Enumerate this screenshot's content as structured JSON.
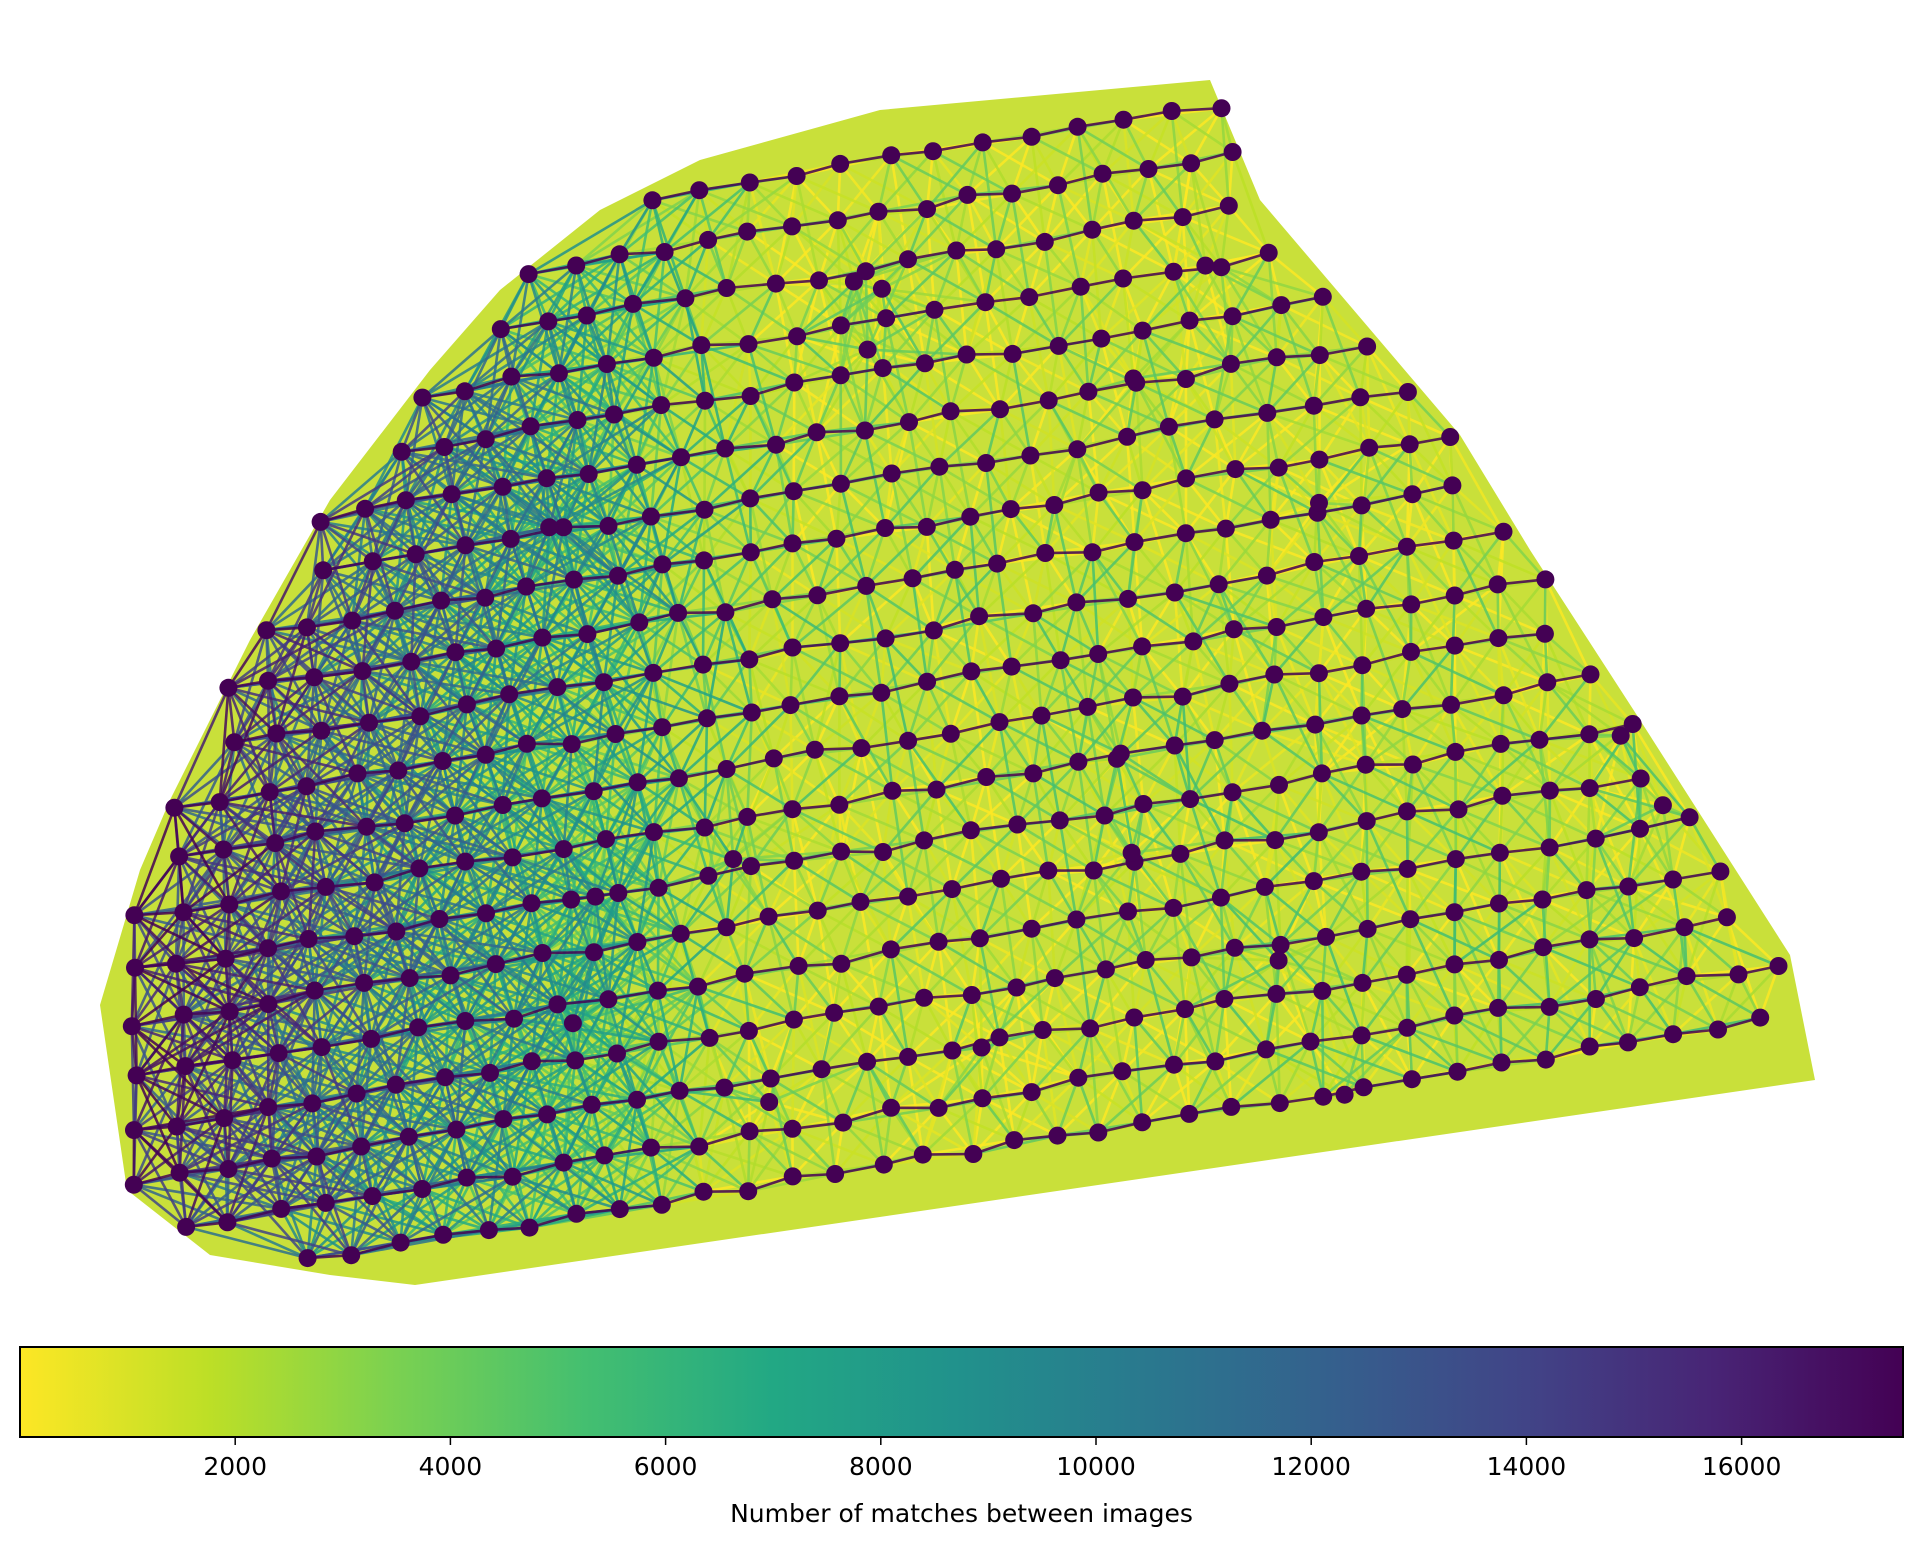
{
  "chart_data": {
    "type": "scatter",
    "description_kind": "network-graph",
    "colormap": "viridis",
    "colors": {
      "low": "#fde725",
      "mid": "#21918c",
      "high": "#440154",
      "node": "#440154"
    },
    "colorbar": {
      "label": "Number of matches between images",
      "range": [
        0,
        17500
      ],
      "ticks": [
        2000,
        4000,
        6000,
        8000,
        10000,
        12000,
        14000,
        16000
      ],
      "tick_labels": [
        "2000",
        "4000",
        "6000",
        "8000",
        "10000",
        "12000",
        "14000",
        "16000"
      ],
      "orientation": "horizontal"
    },
    "grid": false,
    "axes_visible": false,
    "node_count": 585
  }
}
